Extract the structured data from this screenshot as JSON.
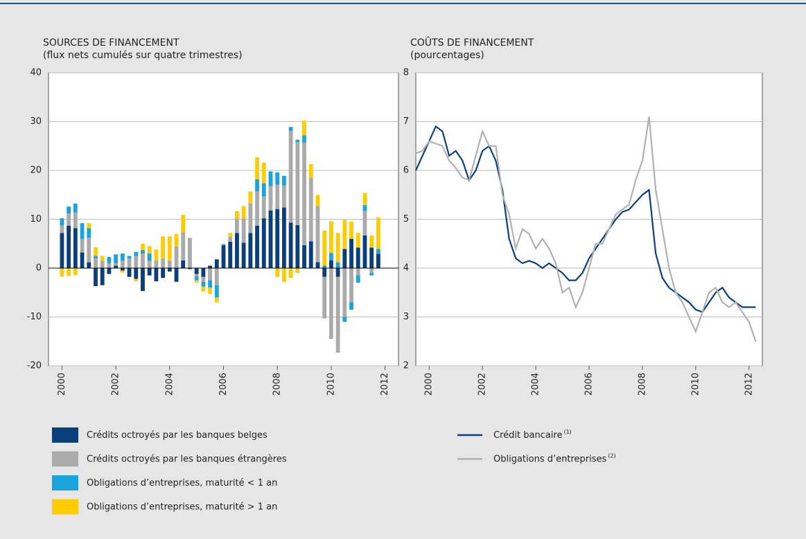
{
  "chart_data": [
    {
      "type": "bar",
      "title": "SOURCES DE FINANCEMENT",
      "subtitle": "(flux nets cumulés sur quatre trimestres)",
      "x": [
        2000.0,
        2000.25,
        2000.5,
        2000.75,
        2001.0,
        2001.25,
        2001.5,
        2001.75,
        2002.0,
        2002.25,
        2002.5,
        2002.75,
        2003.0,
        2003.25,
        2003.5,
        2003.75,
        2004.0,
        2004.25,
        2004.5,
        2004.75,
        2005.0,
        2005.25,
        2005.5,
        2005.75,
        2006.0,
        2006.25,
        2006.5,
        2006.75,
        2007.0,
        2007.25,
        2007.5,
        2007.75,
        2008.0,
        2008.25,
        2008.5,
        2008.75,
        2009.0,
        2009.25,
        2009.5,
        2009.75,
        2010.0,
        2010.25,
        2010.5,
        2010.75,
        2011.0,
        2011.25,
        2011.5,
        2011.75
      ],
      "series": [
        {
          "name": "Crédits octroyés par les banques belges",
          "color": "#0b3f7c",
          "values": [
            7.2,
            8.7,
            8.2,
            3.2,
            1.2,
            -3.7,
            -3.5,
            -1.2,
            0.5,
            -0.5,
            -1.8,
            -2.2,
            -4.7,
            -1.5,
            -2.7,
            -2.0,
            -0.7,
            -2.8,
            1.6,
            -0.2,
            -1.2,
            -1.8,
            0.5,
            1.8,
            4.7,
            5.4,
            7.2,
            5.2,
            7.2,
            8.7,
            10.2,
            11.8,
            12.1,
            12.4,
            9.3,
            8.8,
            4.7,
            5.5,
            1.2,
            -1.8,
            1.6,
            -1.8,
            3.9,
            6.0,
            4.2,
            6.7,
            4.2,
            2.9
          ]
        },
        {
          "name": "Crédits octroyés par les banques étrangères",
          "color": "#aaaaaa",
          "values": [
            1.5,
            2.5,
            3.2,
            2.8,
            5,
            2,
            1.5,
            1,
            0.5,
            1.5,
            2,
            2.5,
            3,
            1.5,
            1.5,
            2,
            1.5,
            4.5,
            5.8,
            6.2,
            -0.5,
            -1,
            -2.5,
            -3.5,
            0.3,
            1,
            3,
            5,
            6,
            7,
            4.5,
            5,
            5,
            4.5,
            18.8,
            17,
            21,
            13,
            11.5,
            -8.5,
            -14.5,
            -15.5,
            -10,
            -7,
            -1.5,
            5,
            -1,
            0
          ]
        },
        {
          "name": "Obligations d’entreprises, maturité < 1 an",
          "color": "#1ba3dc",
          "values": [
            1.5,
            1.4,
            1.8,
            3.2,
            2,
            0.5,
            0,
            1.3,
            1.8,
            1.5,
            0.5,
            0.8,
            0.7,
            1.5,
            0,
            0,
            0,
            0,
            0,
            0,
            -0.8,
            -1,
            -1.5,
            -2.5,
            0,
            0,
            0,
            0,
            0,
            2.5,
            2.7,
            3.0,
            2.5,
            2,
            0.8,
            0.5,
            1.5,
            0,
            0,
            0.5,
            1.5,
            1.2,
            -1,
            -1.5,
            -1.5,
            1.2,
            -0.5,
            1
          ]
        },
        {
          "name": "Obligations d’entreprises, maturité > 1 an",
          "color": "#ffcc00",
          "values": [
            -1.7,
            -1.6,
            -1.4,
            0,
            1,
            1.8,
            1,
            0,
            0,
            -0.4,
            0,
            -0.5,
            1.3,
            1.5,
            2.3,
            4.5,
            5,
            2.5,
            3.5,
            0,
            -0.5,
            -1,
            -1.3,
            -1,
            0,
            0.8,
            1.5,
            2.5,
            2.5,
            4.5,
            4.2,
            0,
            -1.8,
            -2.8,
            -2,
            -1,
            3,
            2.8,
            2.3,
            7.2,
            6.5,
            6,
            6,
            3.5,
            3,
            2.5,
            2.5,
            6.5
          ]
        }
      ],
      "xlim": [
        1999.5,
        2012.5
      ],
      "xticks": [
        2000,
        2002,
        2004,
        2006,
        2008,
        2010,
        2012
      ],
      "ylim": [
        -20,
        40
      ],
      "yticks": [
        -20,
        -10,
        0,
        10,
        20,
        30,
        40
      ],
      "grid": true
    },
    {
      "type": "line",
      "title": "COÛTS DE FINANCEMENT",
      "subtitle": "(pourcentages)",
      "x": [
        1999.5,
        1999.75,
        2000.0,
        2000.25,
        2000.5,
        2000.75,
        2001.0,
        2001.25,
        2001.5,
        2001.75,
        2002.0,
        2002.25,
        2002.5,
        2002.75,
        2003.0,
        2003.25,
        2003.5,
        2003.75,
        2004.0,
        2004.25,
        2004.5,
        2004.75,
        2005.0,
        2005.25,
        2005.5,
        2005.75,
        2006.0,
        2006.25,
        2006.5,
        2006.75,
        2007.0,
        2007.25,
        2007.5,
        2007.75,
        2008.0,
        2008.25,
        2008.5,
        2008.75,
        2009.0,
        2009.25,
        2009.5,
        2009.75,
        2010.0,
        2010.25,
        2010.5,
        2010.75,
        2011.0,
        2011.25,
        2011.5,
        2011.75,
        2012.0,
        2012.25
      ],
      "series": [
        {
          "name": "Crédit bancaire",
          "footnote": "(1)",
          "color": "#0b3f7c",
          "values": [
            6.0,
            6.3,
            6.6,
            6.9,
            6.8,
            6.3,
            6.4,
            6.2,
            5.8,
            6.0,
            6.4,
            6.5,
            6.2,
            5.6,
            4.6,
            4.2,
            4.1,
            4.15,
            4.1,
            4.0,
            4.1,
            4.0,
            3.9,
            3.75,
            3.75,
            3.9,
            4.2,
            4.4,
            4.6,
            4.8,
            5.0,
            5.15,
            5.2,
            5.35,
            5.5,
            5.6,
            4.3,
            3.8,
            3.6,
            3.5,
            3.4,
            3.3,
            3.15,
            3.1,
            3.3,
            3.5,
            3.6,
            3.4,
            3.3,
            3.2,
            3.2,
            3.2
          ]
        },
        {
          "name": "Obligations d’entreprises",
          "footnote": "(2)",
          "color": "#b0b0b0",
          "values": [
            6.35,
            6.4,
            6.6,
            6.55,
            6.5,
            6.2,
            6.05,
            5.85,
            5.8,
            6.3,
            6.8,
            6.5,
            6.5,
            5.5,
            5.1,
            4.4,
            4.8,
            4.7,
            4.4,
            4.6,
            4.4,
            4.1,
            3.5,
            3.6,
            3.2,
            3.5,
            4.0,
            4.5,
            4.5,
            4.8,
            5.1,
            5.2,
            5.3,
            5.8,
            6.2,
            7.1,
            5.6,
            4.8,
            4.0,
            3.5,
            3.3,
            3.0,
            2.7,
            3.1,
            3.5,
            3.6,
            3.3,
            3.2,
            3.3,
            3.1,
            2.9,
            2.5
          ]
        }
      ],
      "xlim": [
        1999.5,
        2012.5
      ],
      "xticks": [
        2000,
        2002,
        2004,
        2006,
        2008,
        2010,
        2012
      ],
      "ylim": [
        2,
        8
      ],
      "yticks": [
        2,
        3,
        4,
        5,
        6,
        7,
        8
      ],
      "grid": true
    }
  ]
}
